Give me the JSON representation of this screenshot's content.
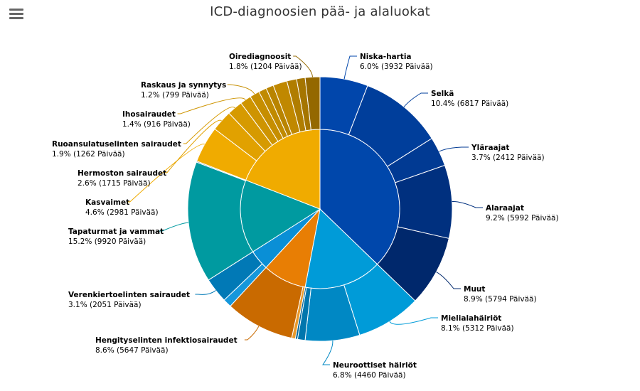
{
  "chart_data": {
    "type": "sunburst",
    "title": "ICD-diagnoosien pää- ja alaluokat",
    "unit": "Päivää",
    "categories": [
      {
        "name": "",
        "color": "#0047ab",
        "children": [
          {
            "name": "Niska-hartia",
            "percent": "6.0%",
            "value": 3932,
            "label": "(3932 Päivää)",
            "color": "#0146ab"
          },
          {
            "name": "Selkä",
            "percent": "10.4%",
            "value": 6817,
            "label": "(6817 Päivää)",
            "color": "#003e9b"
          },
          {
            "name": "Yläraajat",
            "percent": "3.7%",
            "value": 2412,
            "label": "(2412 Päivää)",
            "color": "#013a93"
          },
          {
            "name": "Alaraajat",
            "percent": "9.2%",
            "value": 5992,
            "label": "(5992 Päivää)",
            "color": "#00307f"
          },
          {
            "name": "Muut",
            "percent": "8.9%",
            "value": 5794,
            "label": "(5794 Päivää)",
            "color": "#00286c"
          }
        ]
      },
      {
        "name": "",
        "color": "#009bd8",
        "children": [
          {
            "name": "Mielialahäiriöt",
            "percent": "8.1%",
            "value": 5312,
            "label": "(5312 Päivää)",
            "color": "#009bd8"
          },
          {
            "name": "Neuroottiset häiriöt",
            "percent": "6.8%",
            "value": 4460,
            "label": "(4460 Päivää)",
            "color": "#0088c4"
          },
          {
            "name": "",
            "value": 620,
            "color": "#0076ad"
          },
          {
            "name": "",
            "value": 180,
            "color": "#00669a"
          }
        ]
      },
      {
        "name": "",
        "color": "#e87e04",
        "children": [
          {
            "name": "",
            "value": 300,
            "color": "#e89a2e"
          },
          {
            "name": "Hengityselinten infektiosairaudet",
            "percent": "8.6%",
            "value": 5647,
            "label": "(5647 Päivää)",
            "color": "#c96a00"
          }
        ]
      },
      {
        "name": "",
        "color": "#0a8fd6",
        "children": [
          {
            "name": "",
            "value": 700,
            "color": "#1597db"
          },
          {
            "name": "Verenkiertoelinten sairaudet",
            "percent": "3.1%",
            "value": 2051,
            "label": "(2051 Päivää)",
            "color": "#0179b6"
          }
        ]
      },
      {
        "name": "",
        "color": "#009aa0",
        "children": [
          {
            "name": "Tapaturmat ja vammat",
            "percent": "15.2%",
            "value": 9920,
            "label": "(9920 Päivää)",
            "color": "#009aa0"
          },
          {
            "name": "",
            "value": 90,
            "color": "#6e8f96"
          }
        ]
      },
      {
        "name": "",
        "color": "#f0ab00",
        "children": [
          {
            "name": "Kasvaimet",
            "percent": "4.6%",
            "value": 2981,
            "label": "(2981 Päivää)",
            "color": "#f0ab00"
          },
          {
            "name": "Hermoston sairaudet",
            "percent": "2.6%",
            "value": 1715,
            "label": "(1715 Päivää)",
            "color": "#e1a100"
          },
          {
            "name": "Ruoansulatuselinten sairaudet",
            "percent": "1.9%",
            "value": 1262,
            "label": "(1262 Päivää)",
            "color": "#d69a00"
          },
          {
            "name": "Ihosairaudet",
            "percent": "1.4%",
            "value": 916,
            "label": "(916 Päivää)",
            "color": "#ce9400"
          },
          {
            "name": "Raskaus ja synnytys",
            "percent": "1.2%",
            "value": 799,
            "label": "(799 Päivää)",
            "color": "#c68e00"
          },
          {
            "name": "",
            "value": 650,
            "color": "#c08a00"
          },
          {
            "name": "",
            "value": 620,
            "color": "#b98400"
          },
          {
            "name": "",
            "value": 1150,
            "color": "#c08800"
          },
          {
            "name": "",
            "value": 800,
            "color": "#b07d00"
          },
          {
            "name": "",
            "value": 700,
            "color": "#a57500"
          },
          {
            "name": "Oirediagnoosit",
            "percent": "1.8%",
            "value": 1204,
            "label": "(1204 Päivää)",
            "color": "#946800"
          }
        ]
      }
    ]
  }
}
